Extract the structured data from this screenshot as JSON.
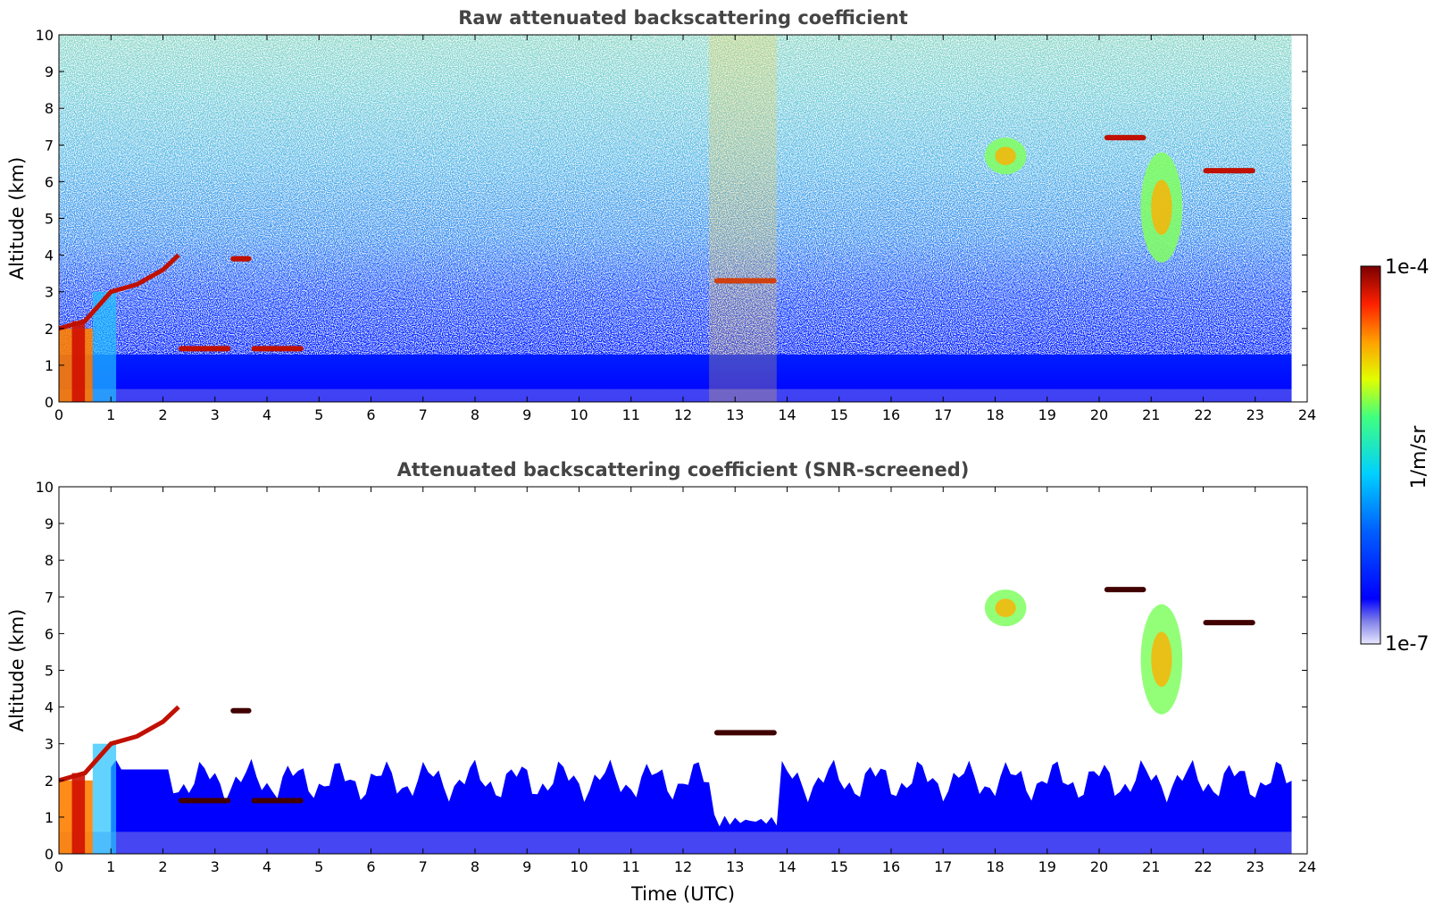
{
  "chart_data": [
    {
      "type": "heatmap",
      "title": "Raw attenuated backscattering coefficient",
      "xlabel": "",
      "ylabel": "Altitude (km)",
      "xlim": [
        0,
        24
      ],
      "ylim": [
        0,
        10
      ],
      "xticks": [
        "0",
        "1",
        "2",
        "3",
        "4",
        "5",
        "6",
        "7",
        "8",
        "9",
        "10",
        "11",
        "12",
        "13",
        "14",
        "15",
        "16",
        "17",
        "18",
        "19",
        "20",
        "21",
        "22",
        "23",
        "24"
      ],
      "yticks": [
        "0",
        "1",
        "2",
        "3",
        "4",
        "5",
        "6",
        "7",
        "8",
        "9",
        "10"
      ],
      "data_end_hour": 23.7,
      "features": [
        {
          "kind": "boundary_layer_top",
          "points": [
            [
              0,
              2.0
            ],
            [
              0.5,
              2.2
            ],
            [
              1,
              3.0
            ],
            [
              1.5,
              3.2
            ],
            [
              2,
              3.6
            ],
            [
              2.3,
              4.0
            ]
          ]
        },
        {
          "kind": "cloud_layer",
          "x": [
            2.3,
            3.3
          ],
          "y": 1.45
        },
        {
          "kind": "cloud_layer",
          "x": [
            3.7,
            4.7
          ],
          "y": 1.45
        },
        {
          "kind": "cloud_layer",
          "x": [
            3.3,
            3.7
          ],
          "y": 3.9
        },
        {
          "kind": "cloud_layer",
          "x": [
            12.6,
            13.8
          ],
          "y": 3.3
        },
        {
          "kind": "cloud_layer",
          "x": [
            22.0,
            23.0
          ],
          "y": 6.3
        },
        {
          "kind": "cloud_layer",
          "x": [
            20.1,
            20.9
          ],
          "y": 7.2
        },
        {
          "kind": "cirrus",
          "x": [
            17.8,
            18.6
          ],
          "y": [
            6.2,
            7.2
          ]
        },
        {
          "kind": "cirrus",
          "x": [
            20.8,
            21.6
          ],
          "y": [
            3.8,
            6.8
          ]
        },
        {
          "kind": "aerosol_column",
          "x": [
            12.5,
            13.8
          ],
          "y": [
            0,
            10
          ]
        }
      ]
    },
    {
      "type": "heatmap",
      "title": "Attenuated backscattering coefficient (SNR-screened)",
      "xlabel": "Time (UTC)",
      "ylabel": "Altitude (km)",
      "xlim": [
        0,
        24
      ],
      "ylim": [
        0,
        10
      ],
      "xticks": [
        "0",
        "1",
        "2",
        "3",
        "4",
        "5",
        "6",
        "7",
        "8",
        "9",
        "10",
        "11",
        "12",
        "13",
        "14",
        "15",
        "16",
        "17",
        "18",
        "19",
        "20",
        "21",
        "22",
        "23",
        "24"
      ],
      "yticks": [
        "0",
        "1",
        "2",
        "3",
        "4",
        "5",
        "6",
        "7",
        "8",
        "9",
        "10"
      ],
      "data_end_hour": 23.7,
      "screened": true
    }
  ],
  "colorbar": {
    "label": "1/m/sr",
    "min_label": "1e-7",
    "max_label": "1e-4",
    "colormap": [
      "#ffffff",
      "#c8c8f0",
      "#8080e8",
      "#0000ff",
      "#0050ff",
      "#00a0ff",
      "#00e0e0",
      "#40ff80",
      "#c0ff20",
      "#ffff00",
      "#ffa000",
      "#ff4000",
      "#e00000",
      "#800000"
    ]
  }
}
